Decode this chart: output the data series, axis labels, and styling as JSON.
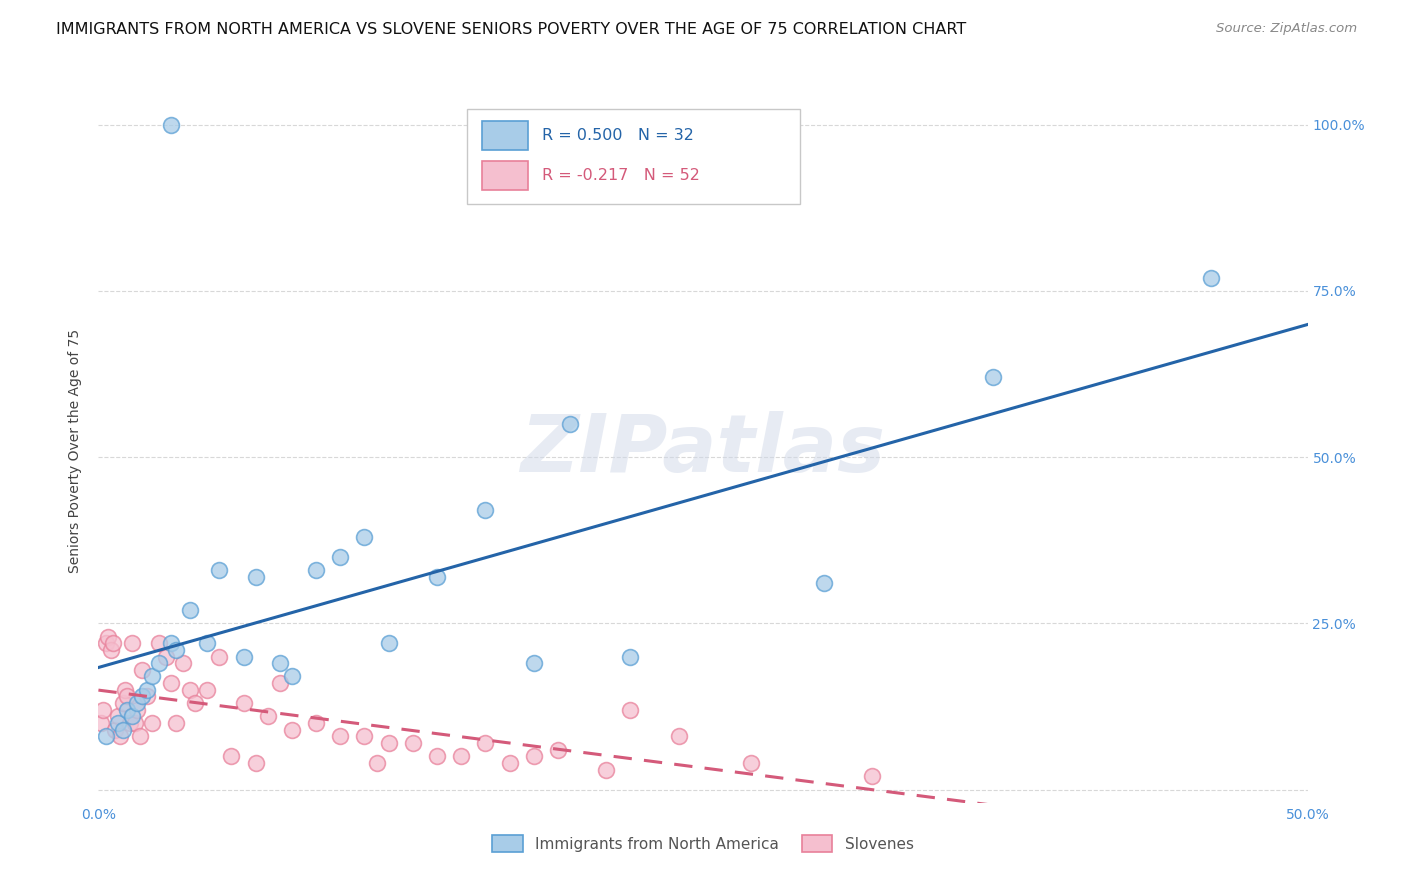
{
  "title": "IMMIGRANTS FROM NORTH AMERICA VS SLOVENE SENIORS POVERTY OVER THE AGE OF 75 CORRELATION CHART",
  "source": "Source: ZipAtlas.com",
  "ylabel": "Seniors Poverty Over the Age of 75",
  "xlim": [
    0.0,
    0.5
  ],
  "ylim": [
    -0.02,
    1.04
  ],
  "xtick_pos": [
    0.0,
    0.1,
    0.2,
    0.3,
    0.4,
    0.5
  ],
  "xtick_labels": [
    "0.0%",
    "",
    "",
    "",
    "",
    "50.0%"
  ],
  "ytick_pos": [
    0.0,
    0.25,
    0.5,
    0.75,
    1.0
  ],
  "ytick_labels": [
    "",
    "25.0%",
    "50.0%",
    "75.0%",
    "100.0%"
  ],
  "legend_label1": "Immigrants from North America",
  "legend_label2": "Slovenes",
  "r1": 0.5,
  "n1": 32,
  "r2": -0.217,
  "n2": 52,
  "blue_face_color": "#a8cce8",
  "blue_edge_color": "#5a9fd4",
  "pink_face_color": "#f5bfcf",
  "pink_edge_color": "#e8809a",
  "blue_line_color": "#2464a8",
  "pink_line_color": "#d45a7a",
  "watermark": "ZIPatlas",
  "blue_scatter_x": [
    0.03,
    0.003,
    0.008,
    0.01,
    0.012,
    0.014,
    0.016,
    0.018,
    0.02,
    0.022,
    0.025,
    0.03,
    0.032,
    0.038,
    0.045,
    0.05,
    0.06,
    0.065,
    0.075,
    0.08,
    0.09,
    0.1,
    0.11,
    0.12,
    0.14,
    0.16,
    0.18,
    0.195,
    0.22,
    0.3,
    0.37,
    0.46
  ],
  "blue_scatter_y": [
    1.0,
    0.08,
    0.1,
    0.09,
    0.12,
    0.11,
    0.13,
    0.14,
    0.15,
    0.17,
    0.19,
    0.22,
    0.21,
    0.27,
    0.22,
    0.33,
    0.2,
    0.32,
    0.19,
    0.17,
    0.33,
    0.35,
    0.38,
    0.22,
    0.32,
    0.42,
    0.19,
    0.55,
    0.2,
    0.31,
    0.62,
    0.77
  ],
  "pink_scatter_x": [
    0.001,
    0.002,
    0.003,
    0.004,
    0.005,
    0.006,
    0.007,
    0.008,
    0.009,
    0.01,
    0.011,
    0.012,
    0.013,
    0.014,
    0.015,
    0.016,
    0.017,
    0.018,
    0.02,
    0.022,
    0.025,
    0.028,
    0.03,
    0.032,
    0.035,
    0.038,
    0.04,
    0.045,
    0.05,
    0.055,
    0.06,
    0.065,
    0.07,
    0.075,
    0.08,
    0.09,
    0.1,
    0.11,
    0.115,
    0.12,
    0.13,
    0.14,
    0.15,
    0.16,
    0.17,
    0.18,
    0.19,
    0.21,
    0.22,
    0.24,
    0.27,
    0.32
  ],
  "pink_scatter_y": [
    0.1,
    0.12,
    0.22,
    0.23,
    0.21,
    0.22,
    0.09,
    0.11,
    0.08,
    0.13,
    0.15,
    0.14,
    0.1,
    0.22,
    0.1,
    0.12,
    0.08,
    0.18,
    0.14,
    0.1,
    0.22,
    0.2,
    0.16,
    0.1,
    0.19,
    0.15,
    0.13,
    0.15,
    0.2,
    0.05,
    0.13,
    0.04,
    0.11,
    0.16,
    0.09,
    0.1,
    0.08,
    0.08,
    0.04,
    0.07,
    0.07,
    0.05,
    0.05,
    0.07,
    0.04,
    0.05,
    0.06,
    0.03,
    0.12,
    0.08,
    0.04,
    0.02
  ],
  "title_fontsize": 11.5,
  "axis_label_fontsize": 10,
  "tick_fontsize": 10,
  "scatter_size": 130,
  "background_color": "#ffffff",
  "grid_color": "#d8d8d8",
  "tick_color": "#4a90d9"
}
